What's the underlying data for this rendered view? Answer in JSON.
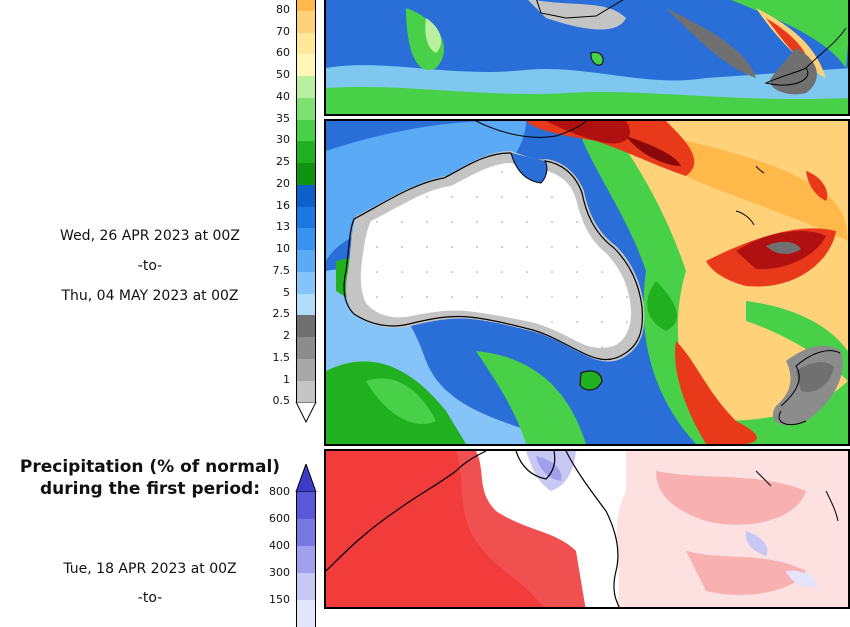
{
  "first_colorbar": {
    "labels": [
      "80",
      "70",
      "60",
      "50",
      "40",
      "35",
      "30",
      "25",
      "20",
      "16",
      "13",
      "10",
      "7.5",
      "5",
      "2.5",
      "2",
      "1.5",
      "1",
      "0.5"
    ],
    "colors": [
      "#ffb84a",
      "#ffd27a",
      "#ffe89a",
      "#fff6b8",
      "#b8f0a0",
      "#7ee070",
      "#48d048",
      "#20b020",
      "#109410",
      "#0e5fc8",
      "#1a78e0",
      "#3a92f0",
      "#5aaaf5",
      "#84c4f8",
      "#b0defa",
      "#707070",
      "#8c8c8c",
      "#a8a8a8",
      "#c4c4c4"
    ]
  },
  "middle_period": {
    "start": "Wed, 26 APR 2023 at 00Z",
    "separator": "-to-",
    "end": "Thu, 04 MAY 2023 at 00Z"
  },
  "percent_section": {
    "title_line1": "Precipitation (% of normal)",
    "title_line2": "during the first period:",
    "colorbar_labels": [
      "800",
      "600",
      "400",
      "300",
      "150"
    ],
    "colorbar_colors": [
      "#5858d8",
      "#7878e0",
      "#a0a0ec",
      "#c8c8f4",
      "#e4e4fa"
    ],
    "period_start": "Tue, 18 APR 2023 at 00Z",
    "period_separator": "-to-"
  }
}
